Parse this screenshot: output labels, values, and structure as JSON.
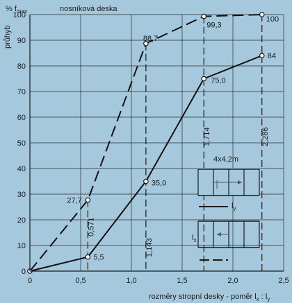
{
  "chart_data": {
    "type": "line",
    "title": "nosníková deska",
    "ylabel_prefix": "% f",
    "ylabel_sub": "max",
    "ylabel": "průhyb",
    "xlabel": "rozměry stropní desky - poměr l",
    "xlabel_sub_x": "x",
    "xlabel_sep": " : l",
    "xlabel_sub_y": "y",
    "xlim": [
      0,
      2.5
    ],
    "ylim": [
      0,
      100
    ],
    "x_ticks": [
      "0",
      "0,5",
      "1,0",
      "1,5",
      "2,0",
      "2,5"
    ],
    "x_tick_values": [
      0,
      0.5,
      1.0,
      1.5,
      2.0,
      2.5
    ],
    "y_ticks": [
      "0",
      "10",
      "20",
      "30",
      "40",
      "50",
      "60",
      "70",
      "80",
      "90",
      "100"
    ],
    "y_tick_values": [
      0,
      10,
      20,
      30,
      40,
      50,
      60,
      70,
      80,
      90,
      100
    ],
    "grid": true,
    "series": [
      {
        "style": "dashed",
        "x": [
          0,
          0.571,
          1.143,
          1.714,
          2.286
        ],
        "y": [
          0,
          27.7,
          88.7,
          99.3,
          100
        ],
        "labels": [
          "",
          "27,7",
          "88,7",
          "99,3",
          "100"
        ]
      },
      {
        "style": "solid",
        "x": [
          0,
          0.571,
          1.143,
          1.714,
          2.286
        ],
        "y": [
          0,
          5.5,
          35.0,
          75.0,
          84
        ],
        "labels": [
          "",
          "5,5",
          "35,0",
          "75,0",
          "84"
        ]
      }
    ],
    "vertical_markers": [
      {
        "x": 0.571,
        "label": "0,571"
      },
      {
        "x": 1.143,
        "label": "1,143"
      },
      {
        "x": 1.714,
        "label": "1,714"
      },
      {
        "x": 2.286,
        "label": "2,286"
      }
    ],
    "inset": {
      "title": "4x4,2m",
      "label_top": "l",
      "label_top_sub": "y",
      "label_bottom": "l",
      "label_bottom_sub": "x"
    }
  }
}
